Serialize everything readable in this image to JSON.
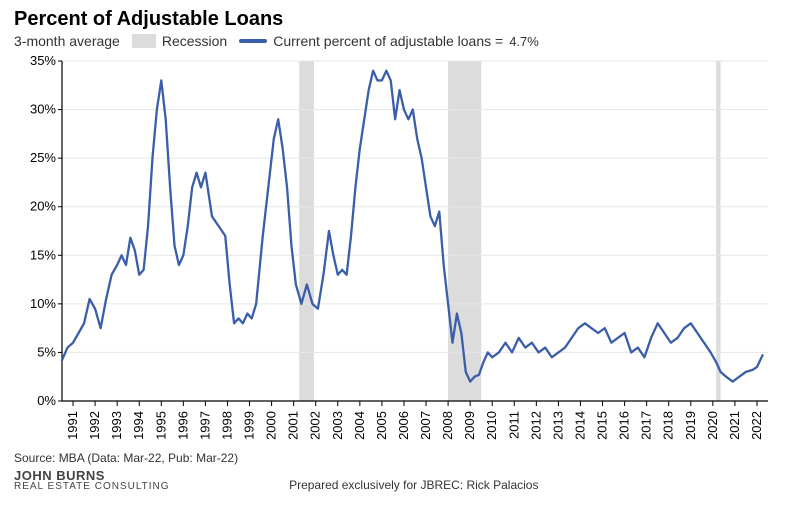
{
  "title": "Percent of Adjustable Loans",
  "subtitle": "3-month average",
  "legend": {
    "recession": "Recession",
    "current_line": "Current percent of adjustable loans =",
    "current_value": "4.7%"
  },
  "source": "Source: MBA (Data: Mar-22, Pub: Mar-22)",
  "logo_main": "JOHN  BURNS",
  "logo_sub": "REAL ESTATE CONSULTING",
  "prepared": "Prepared exclusively for JBREC: Rick Palacios",
  "chart": {
    "type": "line",
    "line_color": "#3b5ea9",
    "line_width": 2.3,
    "recession_color": "#dcdcdc",
    "grid_color": "#e6e6e6",
    "axis_color": "#000000",
    "background_color": "#ffffff",
    "ylim": [
      0,
      35
    ],
    "ytick_step": 5,
    "y_tick_labels": [
      "0%",
      "5%",
      "10%",
      "15%",
      "20%",
      "25%",
      "30%",
      "35%"
    ],
    "x_start": 1990.5,
    "x_end": 2022.5,
    "x_tick_years": [
      1991,
      1992,
      1993,
      1994,
      1995,
      1996,
      1997,
      1998,
      1999,
      2000,
      2001,
      2002,
      2003,
      2004,
      2005,
      2006,
      2007,
      2008,
      2009,
      2010,
      2011,
      2012,
      2013,
      2014,
      2015,
      2016,
      2017,
      2018,
      2019,
      2020,
      2021,
      2022
    ],
    "tick_fontsize": 13,
    "recessions": [
      {
        "start": 2001.25,
        "end": 2001.92
      },
      {
        "start": 2008.0,
        "end": 2009.5
      },
      {
        "start": 2020.15,
        "end": 2020.35
      }
    ],
    "series": [
      {
        "x": 1990.5,
        "y": 4.2
      },
      {
        "x": 1990.75,
        "y": 5.5
      },
      {
        "x": 1991.0,
        "y": 6.0
      },
      {
        "x": 1991.25,
        "y": 7.0
      },
      {
        "x": 1991.5,
        "y": 8.0
      },
      {
        "x": 1991.75,
        "y": 10.5
      },
      {
        "x": 1992.0,
        "y": 9.5
      },
      {
        "x": 1992.25,
        "y": 7.5
      },
      {
        "x": 1992.5,
        "y": 10.5
      },
      {
        "x": 1992.75,
        "y": 13.0
      },
      {
        "x": 1993.0,
        "y": 14.0
      },
      {
        "x": 1993.2,
        "y": 15.0
      },
      {
        "x": 1993.4,
        "y": 14.0
      },
      {
        "x": 1993.6,
        "y": 16.8
      },
      {
        "x": 1993.8,
        "y": 15.5
      },
      {
        "x": 1994.0,
        "y": 13.0
      },
      {
        "x": 1994.2,
        "y": 13.5
      },
      {
        "x": 1994.4,
        "y": 18.0
      },
      {
        "x": 1994.6,
        "y": 25.0
      },
      {
        "x": 1994.8,
        "y": 30.0
      },
      {
        "x": 1995.0,
        "y": 33.0
      },
      {
        "x": 1995.2,
        "y": 29.0
      },
      {
        "x": 1995.4,
        "y": 22.0
      },
      {
        "x": 1995.6,
        "y": 16.0
      },
      {
        "x": 1995.8,
        "y": 14.0
      },
      {
        "x": 1996.0,
        "y": 15.0
      },
      {
        "x": 1996.2,
        "y": 18.0
      },
      {
        "x": 1996.4,
        "y": 22.0
      },
      {
        "x": 1996.6,
        "y": 23.5
      },
      {
        "x": 1996.8,
        "y": 22.0
      },
      {
        "x": 1997.0,
        "y": 23.5
      },
      {
        "x": 1997.3,
        "y": 19.0
      },
      {
        "x": 1997.6,
        "y": 18.0
      },
      {
        "x": 1997.9,
        "y": 17.0
      },
      {
        "x": 1998.1,
        "y": 12.0
      },
      {
        "x": 1998.3,
        "y": 8.0
      },
      {
        "x": 1998.5,
        "y": 8.5
      },
      {
        "x": 1998.7,
        "y": 8.0
      },
      {
        "x": 1998.9,
        "y": 9.0
      },
      {
        "x": 1999.1,
        "y": 8.5
      },
      {
        "x": 1999.3,
        "y": 10.0
      },
      {
        "x": 1999.6,
        "y": 17.0
      },
      {
        "x": 1999.9,
        "y": 23.0
      },
      {
        "x": 2000.1,
        "y": 27.0
      },
      {
        "x": 2000.3,
        "y": 29.0
      },
      {
        "x": 2000.5,
        "y": 26.0
      },
      {
        "x": 2000.7,
        "y": 22.0
      },
      {
        "x": 2000.9,
        "y": 16.0
      },
      {
        "x": 2001.1,
        "y": 12.0
      },
      {
        "x": 2001.35,
        "y": 10.0
      },
      {
        "x": 2001.6,
        "y": 12.0
      },
      {
        "x": 2001.85,
        "y": 10.0
      },
      {
        "x": 2002.1,
        "y": 9.5
      },
      {
        "x": 2002.35,
        "y": 13.0
      },
      {
        "x": 2002.6,
        "y": 17.5
      },
      {
        "x": 2002.8,
        "y": 15.0
      },
      {
        "x": 2003.0,
        "y": 13.0
      },
      {
        "x": 2003.2,
        "y": 13.5
      },
      {
        "x": 2003.4,
        "y": 13.0
      },
      {
        "x": 2003.6,
        "y": 17.0
      },
      {
        "x": 2003.8,
        "y": 22.0
      },
      {
        "x": 2004.0,
        "y": 26.0
      },
      {
        "x": 2004.2,
        "y": 29.0
      },
      {
        "x": 2004.4,
        "y": 32.0
      },
      {
        "x": 2004.6,
        "y": 34.0
      },
      {
        "x": 2004.8,
        "y": 33.0
      },
      {
        "x": 2005.0,
        "y": 33.0
      },
      {
        "x": 2005.2,
        "y": 34.0
      },
      {
        "x": 2005.4,
        "y": 33.0
      },
      {
        "x": 2005.6,
        "y": 29.0
      },
      {
        "x": 2005.8,
        "y": 32.0
      },
      {
        "x": 2006.0,
        "y": 30.0
      },
      {
        "x": 2006.2,
        "y": 29.0
      },
      {
        "x": 2006.4,
        "y": 30.0
      },
      {
        "x": 2006.6,
        "y": 27.0
      },
      {
        "x": 2006.8,
        "y": 25.0
      },
      {
        "x": 2007.0,
        "y": 22.0
      },
      {
        "x": 2007.2,
        "y": 19.0
      },
      {
        "x": 2007.4,
        "y": 18.0
      },
      {
        "x": 2007.6,
        "y": 19.5
      },
      {
        "x": 2007.8,
        "y": 14.0
      },
      {
        "x": 2008.0,
        "y": 10.0
      },
      {
        "x": 2008.2,
        "y": 6.0
      },
      {
        "x": 2008.4,
        "y": 9.0
      },
      {
        "x": 2008.6,
        "y": 7.0
      },
      {
        "x": 2008.8,
        "y": 3.0
      },
      {
        "x": 2009.0,
        "y": 2.0
      },
      {
        "x": 2009.2,
        "y": 2.5
      },
      {
        "x": 2009.4,
        "y": 2.7
      },
      {
        "x": 2009.6,
        "y": 4.0
      },
      {
        "x": 2009.8,
        "y": 5.0
      },
      {
        "x": 2010.0,
        "y": 4.5
      },
      {
        "x": 2010.3,
        "y": 5.0
      },
      {
        "x": 2010.6,
        "y": 6.0
      },
      {
        "x": 2010.9,
        "y": 5.0
      },
      {
        "x": 2011.2,
        "y": 6.5
      },
      {
        "x": 2011.5,
        "y": 5.5
      },
      {
        "x": 2011.8,
        "y": 6.0
      },
      {
        "x": 2012.1,
        "y": 5.0
      },
      {
        "x": 2012.4,
        "y": 5.5
      },
      {
        "x": 2012.7,
        "y": 4.5
      },
      {
        "x": 2013.0,
        "y": 5.0
      },
      {
        "x": 2013.3,
        "y": 5.5
      },
      {
        "x": 2013.6,
        "y": 6.5
      },
      {
        "x": 2013.9,
        "y": 7.5
      },
      {
        "x": 2014.2,
        "y": 8.0
      },
      {
        "x": 2014.5,
        "y": 7.5
      },
      {
        "x": 2014.8,
        "y": 7.0
      },
      {
        "x": 2015.1,
        "y": 7.5
      },
      {
        "x": 2015.4,
        "y": 6.0
      },
      {
        "x": 2015.7,
        "y": 6.5
      },
      {
        "x": 2016.0,
        "y": 7.0
      },
      {
        "x": 2016.3,
        "y": 5.0
      },
      {
        "x": 2016.6,
        "y": 5.5
      },
      {
        "x": 2016.9,
        "y": 4.5
      },
      {
        "x": 2017.2,
        "y": 6.5
      },
      {
        "x": 2017.5,
        "y": 8.0
      },
      {
        "x": 2017.8,
        "y": 7.0
      },
      {
        "x": 2018.1,
        "y": 6.0
      },
      {
        "x": 2018.4,
        "y": 6.5
      },
      {
        "x": 2018.7,
        "y": 7.5
      },
      {
        "x": 2019.0,
        "y": 8.0
      },
      {
        "x": 2019.3,
        "y": 7.0
      },
      {
        "x": 2019.6,
        "y": 6.0
      },
      {
        "x": 2019.9,
        "y": 5.0
      },
      {
        "x": 2020.15,
        "y": 4.0
      },
      {
        "x": 2020.35,
        "y": 3.0
      },
      {
        "x": 2020.6,
        "y": 2.5
      },
      {
        "x": 2020.9,
        "y": 2.0
      },
      {
        "x": 2021.2,
        "y": 2.5
      },
      {
        "x": 2021.5,
        "y": 3.0
      },
      {
        "x": 2021.8,
        "y": 3.2
      },
      {
        "x": 2022.0,
        "y": 3.5
      },
      {
        "x": 2022.25,
        "y": 4.7
      }
    ]
  }
}
